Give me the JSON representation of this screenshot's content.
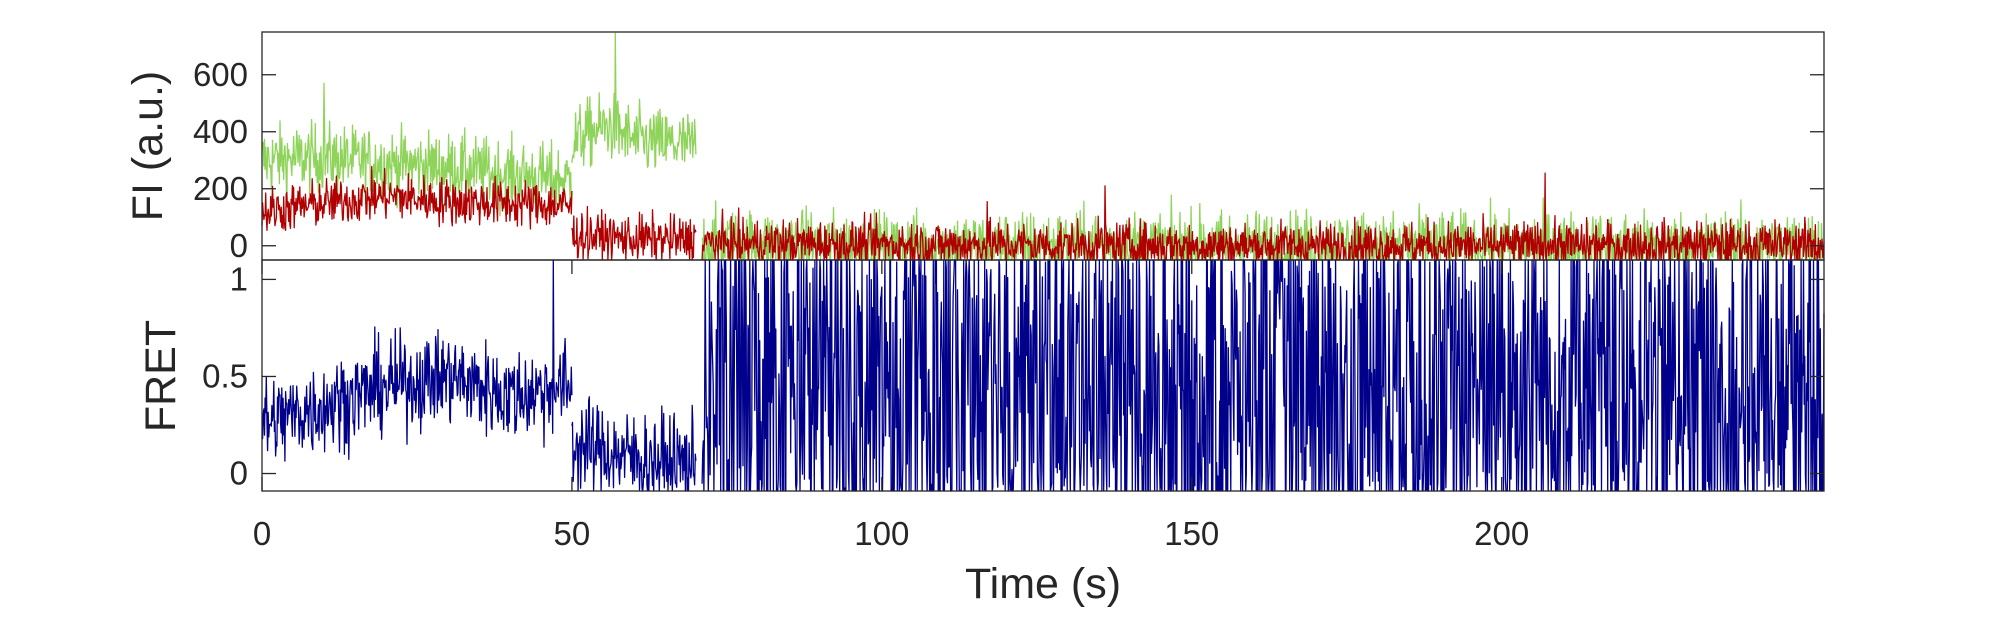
{
  "chart_data": [
    {
      "type": "line",
      "ylabel": "FI (a.u.)",
      "xlabel": "",
      "xlim": [
        0,
        252
      ],
      "ylim": [
        -50,
        750
      ],
      "yticks": [
        0,
        200,
        400,
        600
      ],
      "ytick_labels": [
        "0",
        "200",
        "400",
        "600"
      ],
      "grid": false,
      "legend": "none",
      "series": [
        {
          "color": "#8fd45a",
          "noise": 60,
          "segments": [
            {
              "x": [
                0,
                10,
                20,
                30,
                40,
                50
              ],
              "y": [
                300,
                310,
                290,
                275,
                250,
                230
              ]
            },
            {
              "x": [
                50,
                52,
                56,
                60,
                65,
                70
              ],
              "y": [
                360,
                390,
                420,
                370,
                360,
                350
              ]
            },
            {
              "x": [
                71,
                100,
                150,
                200,
                252
              ],
              "y": [
                10,
                0,
                5,
                0,
                0
              ]
            }
          ]
        },
        {
          "color": "#b00000",
          "noise": 42,
          "segments": [
            {
              "x": [
                0,
                10,
                20,
                30,
                40,
                50
              ],
              "y": [
                120,
                150,
                175,
                155,
                150,
                140
              ]
            },
            {
              "x": [
                50,
                55,
                60,
                70
              ],
              "y": [
                40,
                30,
                25,
                20
              ]
            },
            {
              "x": [
                71,
                100,
                150,
                200,
                252
              ],
              "y": [
                10,
                5,
                0,
                0,
                5
              ]
            }
          ]
        }
      ],
      "spikes": [
        {
          "series": 0,
          "x": 57,
          "y": 745
        },
        {
          "series": 0,
          "x": 10,
          "y": 570
        },
        {
          "series": 1,
          "x": 117,
          "y": 155
        },
        {
          "series": 1,
          "x": 136,
          "y": 210
        },
        {
          "series": 1,
          "x": 207,
          "y": 255
        }
      ]
    },
    {
      "type": "line",
      "ylabel": "FRET",
      "xlabel": "Time (s)",
      "xlim": [
        0,
        252
      ],
      "ylim": [
        -0.09,
        1.1
      ],
      "yticks": [
        0,
        0.5,
        1
      ],
      "ytick_labels": [
        "0",
        "0.5",
        "1"
      ],
      "xticks": [
        0,
        50,
        100,
        150,
        200
      ],
      "xtick_labels": [
        "0",
        "50",
        "100",
        "150",
        "200"
      ],
      "grid": false,
      "legend": "none",
      "series": [
        {
          "color": "#00008b",
          "noise": 0.12,
          "segments": [
            {
              "x": [
                0,
                10,
                20,
                30,
                40,
                50
              ],
              "y": [
                0.25,
                0.35,
                0.45,
                0.5,
                0.4,
                0.45
              ]
            },
            {
              "x": [
                50,
                55,
                60,
                70
              ],
              "y": [
                0.15,
                0.12,
                0.08,
                0.05
              ]
            },
            {
              "x": [
                71,
                252
              ],
              "y": [
                0.5,
                0.5
              ],
              "random_full_range": true
            }
          ]
        }
      ],
      "spikes": [
        {
          "series": 0,
          "x": 47,
          "y": 1.1
        }
      ]
    }
  ]
}
